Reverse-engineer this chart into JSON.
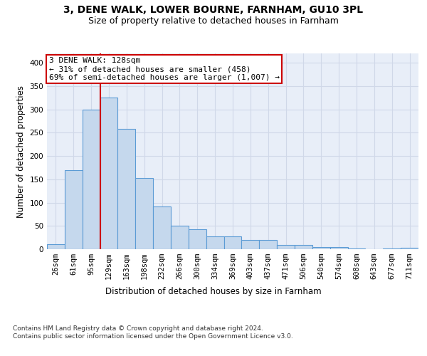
{
  "title_line1": "3, DENE WALK, LOWER BOURNE, FARNHAM, GU10 3PL",
  "title_line2": "Size of property relative to detached houses in Farnham",
  "xlabel": "Distribution of detached houses by size in Farnham",
  "ylabel": "Number of detached properties",
  "footnote": "Contains HM Land Registry data © Crown copyright and database right 2024.\nContains public sector information licensed under the Open Government Licence v3.0.",
  "bar_labels": [
    "26sqm",
    "61sqm",
    "95sqm",
    "129sqm",
    "163sqm",
    "198sqm",
    "232sqm",
    "266sqm",
    "300sqm",
    "334sqm",
    "369sqm",
    "403sqm",
    "437sqm",
    "471sqm",
    "506sqm",
    "540sqm",
    "574sqm",
    "608sqm",
    "643sqm",
    "677sqm",
    "711sqm"
  ],
  "bar_values": [
    11,
    170,
    300,
    325,
    258,
    152,
    92,
    50,
    43,
    27,
    27,
    20,
    20,
    9,
    9,
    4,
    4,
    1,
    0,
    1,
    3
  ],
  "bar_color": "#c5d8ed",
  "bar_edge_color": "#5b9bd5",
  "annotation_box_text": "3 DENE WALK: 128sqm\n← 31% of detached houses are smaller (458)\n69% of semi-detached houses are larger (1,007) →",
  "annotation_box_color": "#ffffff",
  "annotation_box_edge_color": "#cc0000",
  "vline_x_index": 2,
  "vline_color": "#cc0000",
  "vline_linewidth": 1.5,
  "grid_color": "#d0d8e8",
  "background_color": "#e8eef8",
  "ylim": [
    0,
    420
  ],
  "yticks": [
    0,
    50,
    100,
    150,
    200,
    250,
    300,
    350,
    400
  ],
  "title_fontsize": 10,
  "subtitle_fontsize": 9,
  "axis_label_fontsize": 8.5,
  "tick_fontsize": 7.5,
  "annotation_fontsize": 8,
  "footnote_fontsize": 6.5
}
